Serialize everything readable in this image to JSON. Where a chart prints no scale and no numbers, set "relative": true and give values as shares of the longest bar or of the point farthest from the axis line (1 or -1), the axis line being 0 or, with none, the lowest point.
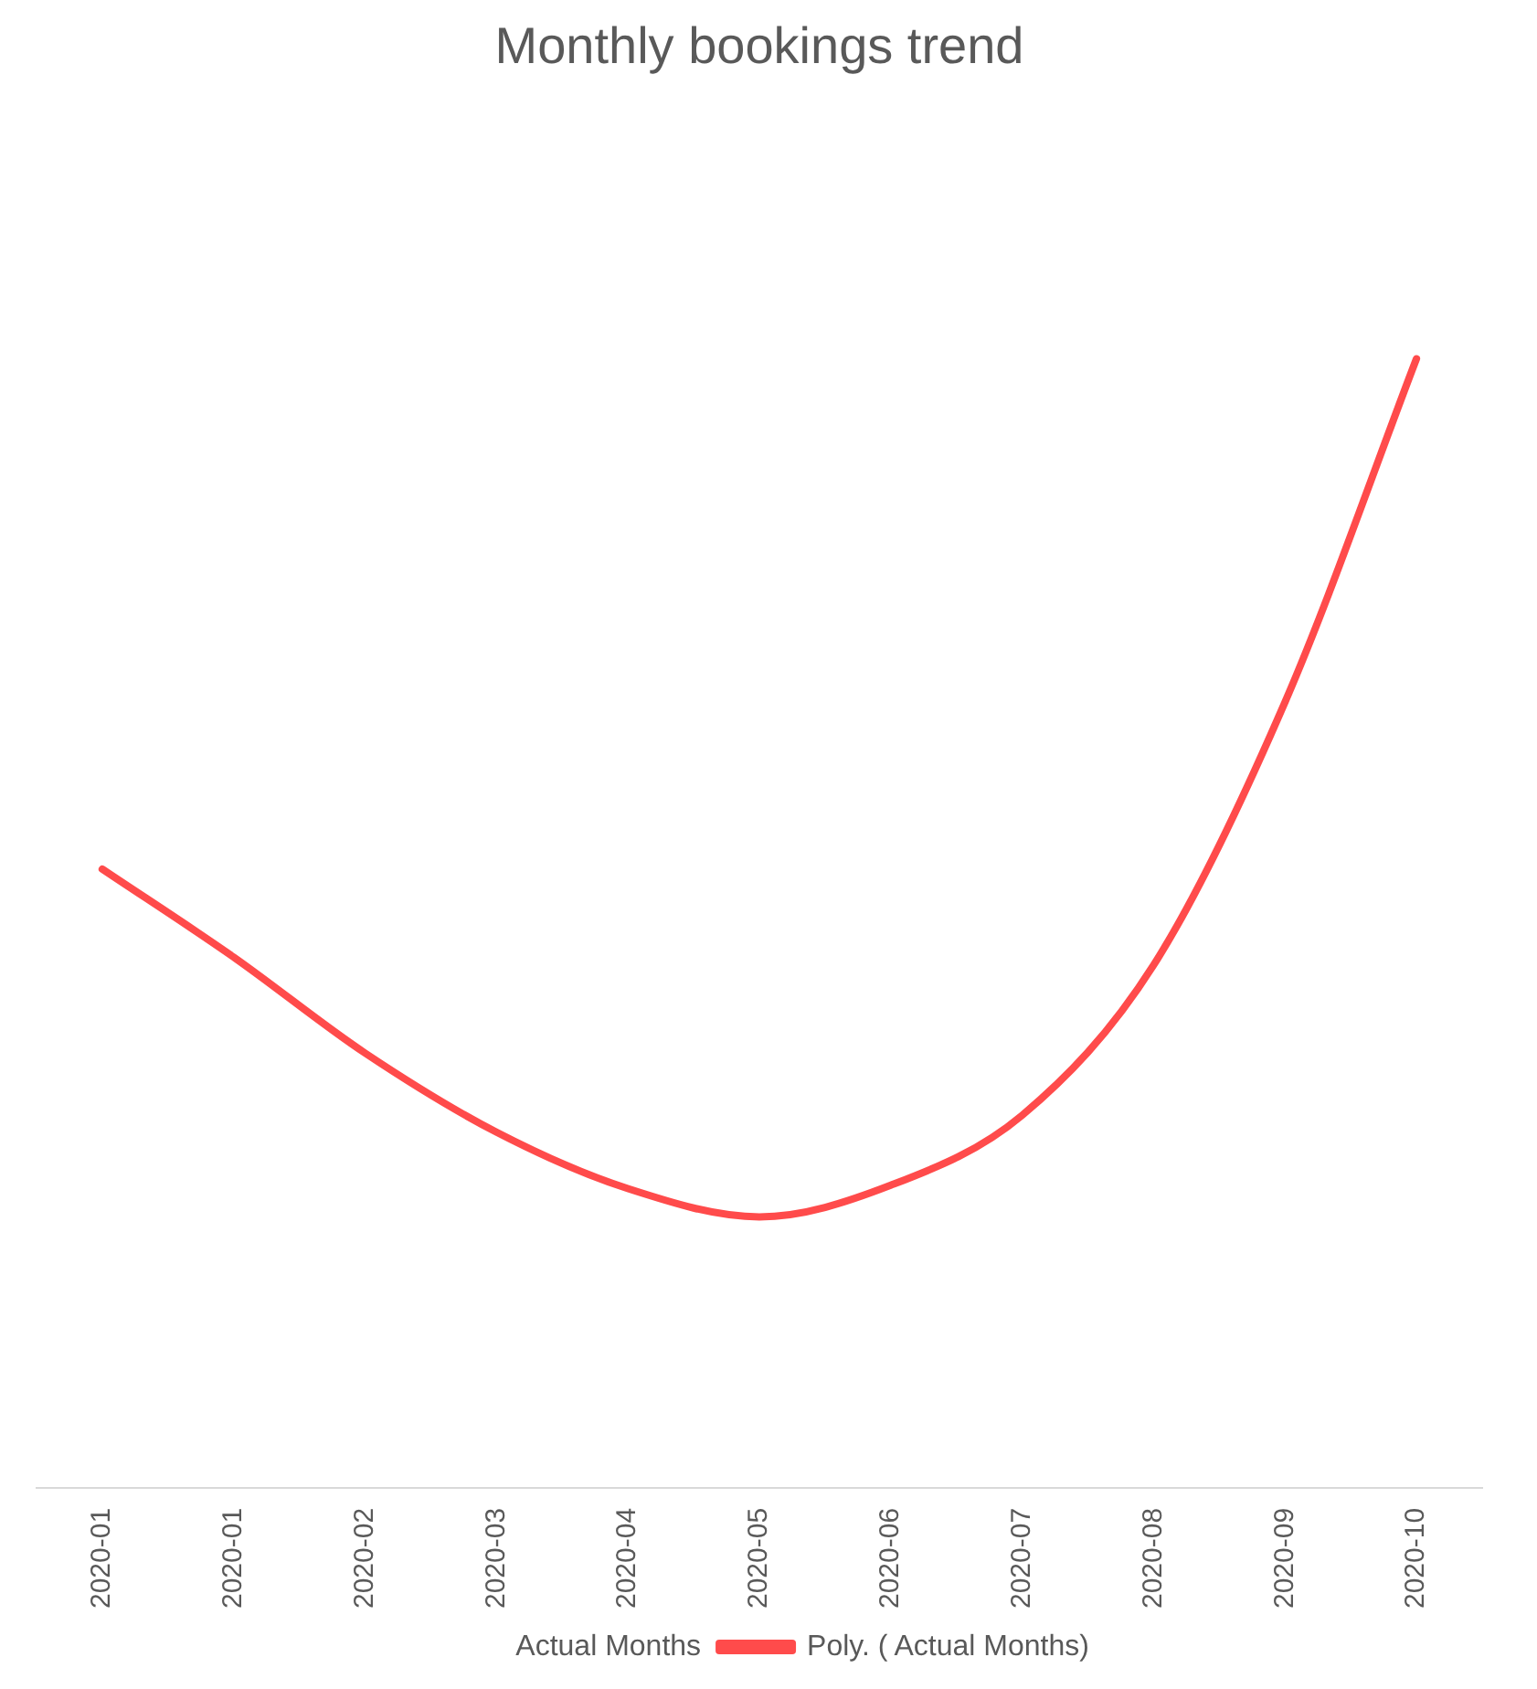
{
  "chart_data": {
    "type": "line",
    "title": "Monthly bookings trend",
    "relative": true,
    "legend": "bottom",
    "marker": "none",
    "line_style": "solid",
    "categories": [
      "2020-01",
      "2020-01",
      "2020-02",
      "2020-03",
      "2020-04",
      "2020-05",
      "2020-06",
      "2020-07",
      "2020-08",
      "2020-09",
      "2020-10"
    ],
    "series": [
      {
        "name": "Actual Months",
        "values": [
          null,
          null,
          null,
          null,
          null,
          null,
          null,
          null,
          null,
          null,
          null
        ]
      },
      {
        "name": "Poly. ( Actual Months)",
        "color": "#ff4b4b",
        "values": [
          0.548,
          0.47,
          0.385,
          0.315,
          0.265,
          0.24,
          0.268,
          0.33,
          0.463,
          0.696,
          1
        ]
      }
    ]
  }
}
